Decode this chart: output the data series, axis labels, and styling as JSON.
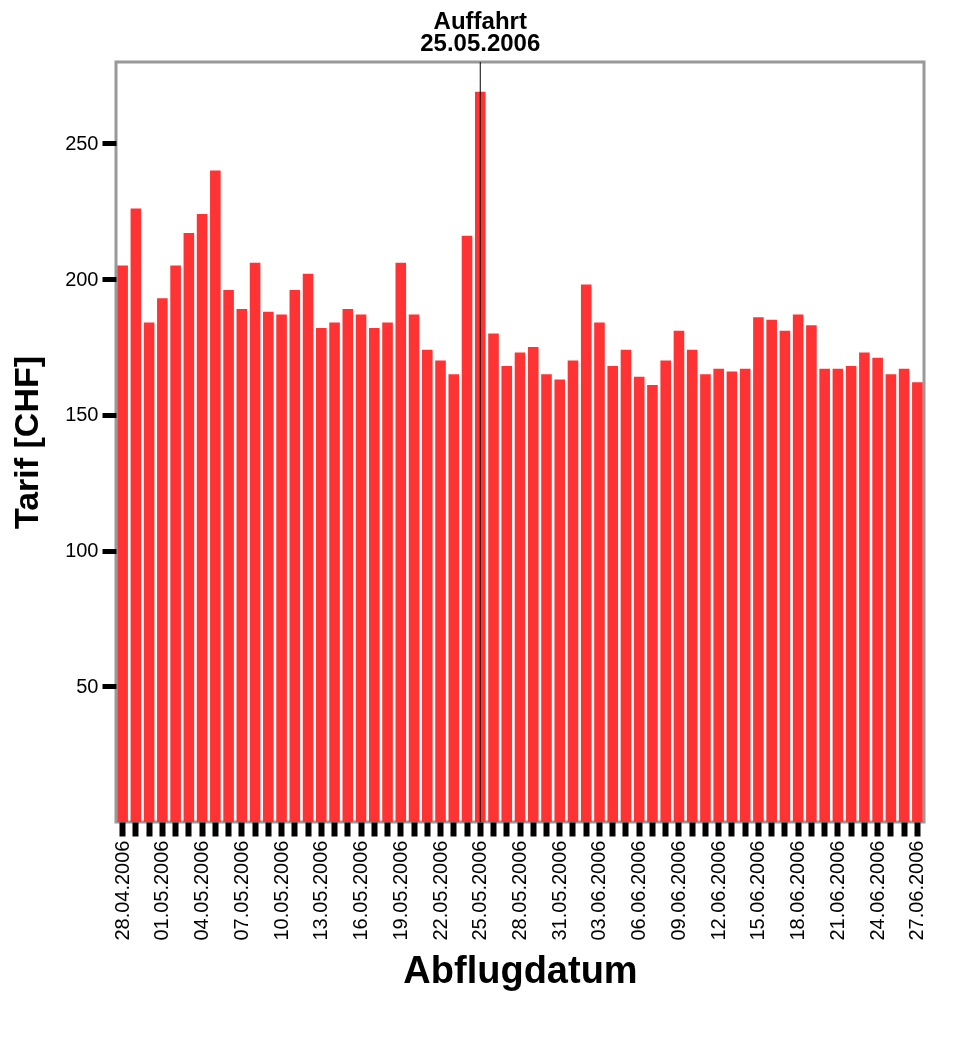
{
  "chart_data": {
    "type": "bar",
    "xlabel": "Abflugdatum",
    "ylabel": "Tarif [CHF]",
    "categories": [
      "28.04.2006",
      null,
      null,
      "01.05.2006",
      null,
      null,
      "04.05.2006",
      null,
      null,
      "07.05.2006",
      null,
      null,
      "10.05.2006",
      null,
      null,
      "13.05.2006",
      null,
      null,
      "16.05.2006",
      null,
      null,
      "19.05.2006",
      null,
      null,
      "22.05.2006",
      null,
      null,
      "25.05.2006",
      null,
      null,
      "28.05.2006",
      null,
      null,
      "31.05.2006",
      null,
      null,
      "03.06.2006",
      null,
      null,
      "06.06.2006",
      null,
      null,
      "09.06.2006",
      null,
      null,
      "12.06.2006",
      null,
      null,
      "15.06.2006",
      null,
      null,
      "18.06.2006",
      null,
      null,
      "21.06.2006",
      null,
      null,
      "24.06.2006",
      null,
      null,
      "27.06.2006"
    ],
    "values": [
      205,
      226,
      184,
      193,
      205,
      217,
      224,
      240,
      196,
      189,
      206,
      188,
      187,
      196,
      202,
      182,
      184,
      189,
      187,
      182,
      184,
      206,
      187,
      174,
      170,
      165,
      216,
      269,
      180,
      168,
      173,
      175,
      165,
      163,
      170,
      198,
      184,
      168,
      174,
      164,
      161,
      170,
      181,
      174,
      165,
      167,
      166,
      167,
      186,
      185,
      181,
      187,
      183,
      167,
      167,
      168,
      173,
      171,
      165,
      167,
      162
    ],
    "color": "#ff3333",
    "ylim": [
      0,
      280
    ],
    "yticks": [
      50,
      100,
      150,
      200,
      250
    ],
    "grid": false,
    "ref_lines": [
      {
        "axis": "x",
        "value": "25.05.2006",
        "label": "Auffahrt\n25.05.2006",
        "color": "#000000"
      }
    ]
  }
}
